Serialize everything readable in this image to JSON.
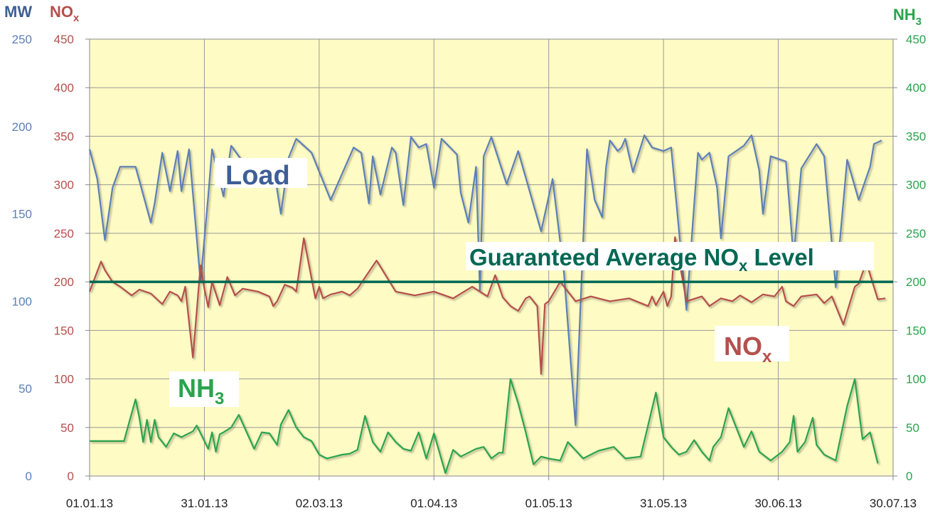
{
  "chart_data": {
    "type": "line",
    "colors": {
      "load": "#5b7fb6",
      "nox": "#b5504c",
      "nh3": "#2aa44d",
      "guarantee": "#006853",
      "background": "#fefbc4",
      "grid": "#9a9a9a"
    },
    "axes": {
      "mw": {
        "title": "MW",
        "ticks": [
          "250",
          "200",
          "150",
          "100",
          "50",
          "0"
        ],
        "range": [
          0,
          250
        ],
        "color": "#5b7fb6"
      },
      "nox": {
        "title": "NO",
        "title_sub": "x",
        "ticks": [
          "450",
          "400",
          "350",
          "300",
          "250",
          "200",
          "150",
          "100",
          "50",
          "0"
        ],
        "range": [
          0,
          450
        ],
        "color": "#b5504c"
      },
      "nh3": {
        "title": "NH",
        "title_sub": "3",
        "ticks": [
          "450",
          "400",
          "350",
          "300",
          "250",
          "200",
          "150",
          "100",
          "50",
          "0"
        ],
        "range": [
          0,
          450
        ],
        "color": "#2aa44d"
      },
      "x": {
        "ticks": [
          "01.01.13",
          "31.01.13",
          "02.03.13",
          "01.04.13",
          "01.05.13",
          "31.05.13",
          "30.06.13",
          "30.07.13"
        ],
        "range": [
          0,
          210
        ]
      }
    },
    "grid": true,
    "annotations": {
      "load_label": "Load",
      "nox_label": "NO",
      "nox_label_sub": "x",
      "nh3_label": "NH",
      "nh3_label_sub": "3",
      "guarantee_label_pre": "Guaranteed Average NO",
      "guarantee_label_sub": "x",
      "guarantee_label_post": " Level"
    },
    "guarantee_level": {
      "axis": "nox",
      "value": 200
    },
    "series": [
      {
        "key": "load",
        "axis": "mw",
        "x": [
          0,
          2,
          4,
          6,
          8,
          12,
          16,
          17,
          19,
          21,
          23,
          24,
          26,
          29,
          31,
          32,
          35,
          37,
          40,
          43,
          45,
          47,
          48,
          50,
          52,
          54,
          58,
          63,
          69,
          71,
          73,
          74,
          76,
          79,
          80,
          82,
          84,
          86,
          88,
          90,
          92,
          96,
          97,
          99,
          101,
          102,
          103,
          105,
          109,
          112,
          118,
          121,
          124,
          127,
          130,
          132,
          134,
          135,
          136,
          138,
          139,
          140,
          142,
          145,
          147,
          150,
          152,
          156,
          159,
          160,
          162,
          164,
          165,
          167,
          169,
          171,
          173,
          175,
          176,
          178,
          182,
          184,
          186,
          190,
          192,
          195,
          198,
          201,
          204,
          205,
          207
        ],
        "y": [
          187,
          170,
          135,
          165,
          177,
          177,
          145,
          156,
          185,
          163,
          186,
          163,
          187,
          111,
          160,
          187,
          160,
          189,
          180,
          170,
          171,
          167,
          178,
          150,
          182,
          193,
          185,
          158,
          188,
          185,
          156,
          183,
          161,
          188,
          185,
          155,
          194,
          188,
          190,
          165,
          193,
          184,
          162,
          145,
          177,
          106,
          183,
          194,
          167,
          186,
          140,
          170,
          116,
          29,
          187,
          158,
          148,
          177,
          192,
          186,
          188,
          193,
          174,
          195,
          188,
          186,
          188,
          95,
          185,
          181,
          185,
          165,
          136,
          183,
          186,
          189,
          195,
          175,
          150,
          183,
          180,
          125,
          176,
          190,
          183,
          108,
          181,
          158,
          177,
          190,
          192
        ]
      },
      {
        "key": "nox",
        "axis": "nox",
        "x": [
          0,
          3,
          4,
          6,
          8,
          11,
          13,
          16,
          19,
          21,
          23,
          24,
          25,
          27,
          29,
          30,
          31,
          32,
          34,
          36,
          38,
          40,
          44,
          47,
          48,
          49,
          51,
          53,
          54,
          56,
          59,
          60,
          61,
          63,
          66,
          68,
          70,
          75,
          80,
          85,
          90,
          95,
          100,
          104,
          106,
          108,
          110,
          112,
          114,
          115,
          116,
          117,
          118,
          119,
          120,
          123,
          127,
          131,
          136,
          141,
          146,
          147,
          148,
          150,
          151,
          152,
          153,
          156,
          160,
          162,
          165,
          168,
          170,
          173,
          176,
          179,
          181,
          182,
          184,
          186,
          190,
          192,
          194,
          197,
          200,
          201,
          203,
          206,
          208
        ],
        "y": [
          190,
          221,
          212,
          200,
          195,
          186,
          192,
          188,
          177,
          190,
          186,
          180,
          195,
          122,
          217,
          193,
          174,
          200,
          176,
          205,
          186,
          193,
          190,
          185,
          175,
          180,
          197,
          194,
          190,
          245,
          183,
          195,
          183,
          187,
          190,
          186,
          193,
          222,
          190,
          186,
          190,
          183,
          195,
          185,
          207,
          184,
          175,
          170,
          183,
          185,
          180,
          175,
          105,
          177,
          180,
          200,
          180,
          185,
          180,
          183,
          175,
          185,
          176,
          190,
          175,
          185,
          246,
          180,
          185,
          175,
          183,
          180,
          186,
          179,
          187,
          185,
          195,
          180,
          175,
          185,
          187,
          178,
          185,
          156,
          195,
          198,
          220,
          182,
          183
        ]
      },
      {
        "key": "nh3",
        "axis": "nh3",
        "x": [
          0,
          3,
          7,
          9,
          12,
          13,
          14,
          15,
          16,
          17,
          18,
          20,
          22,
          24,
          27,
          28,
          31,
          32,
          33,
          34,
          35,
          37,
          39,
          43,
          45,
          47,
          49,
          50,
          52,
          54,
          56,
          58,
          60,
          62,
          64,
          66,
          68,
          70,
          72,
          74,
          76,
          78,
          80,
          82,
          84,
          86,
          88,
          90,
          93,
          95,
          97,
          101,
          103,
          105,
          107,
          108,
          110,
          112,
          114,
          116,
          118,
          120,
          123,
          125,
          129,
          133,
          137,
          140,
          144,
          148,
          150,
          152,
          154,
          156,
          158,
          160,
          162,
          163,
          165,
          167,
          169,
          171,
          173,
          175,
          178,
          181,
          183,
          184,
          185,
          187,
          189,
          190,
          192,
          195,
          198,
          200,
          202,
          204,
          206
        ],
        "y": [
          36,
          36,
          36,
          36,
          79,
          60,
          35,
          58,
          35,
          58,
          40,
          30,
          44,
          40,
          46,
          52,
          28,
          45,
          25,
          43,
          45,
          50,
          63,
          28,
          45,
          44,
          32,
          53,
          68,
          50,
          40,
          36,
          22,
          18,
          20,
          22,
          23,
          27,
          62,
          35,
          25,
          45,
          35,
          28,
          26,
          45,
          18,
          44,
          3,
          27,
          20,
          28,
          30,
          18,
          24,
          24,
          100,
          75,
          45,
          12,
          20,
          18,
          16,
          35,
          18,
          26,
          30,
          18,
          20,
          86,
          40,
          30,
          22,
          25,
          37,
          25,
          16,
          30,
          40,
          70,
          50,
          30,
          46,
          25,
          16,
          25,
          35,
          62,
          25,
          35,
          60,
          32,
          22,
          16,
          72,
          100,
          38,
          45,
          13
        ]
      }
    ]
  }
}
